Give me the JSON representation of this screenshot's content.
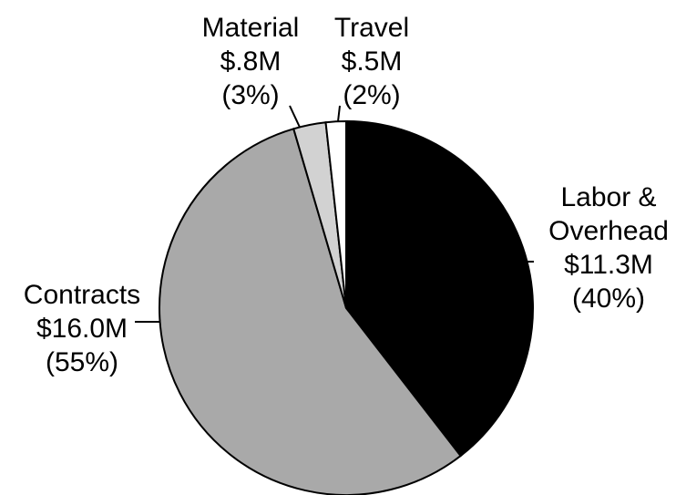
{
  "chart_data": {
    "type": "pie",
    "categories": [
      "Labor & Overhead",
      "Contracts",
      "Material",
      "Travel"
    ],
    "values": [
      11.3,
      16.0,
      0.8,
      0.5
    ],
    "value_labels": [
      "$11.3M",
      "$16.0M",
      "$.8M",
      "$.5M"
    ],
    "percent_labels": [
      "(40%)",
      "(55%)",
      "(3%)",
      "(2%)"
    ],
    "colors": [
      "#000000",
      "#a9a9a9",
      "#d2d2d2",
      "#ffffff"
    ]
  }
}
